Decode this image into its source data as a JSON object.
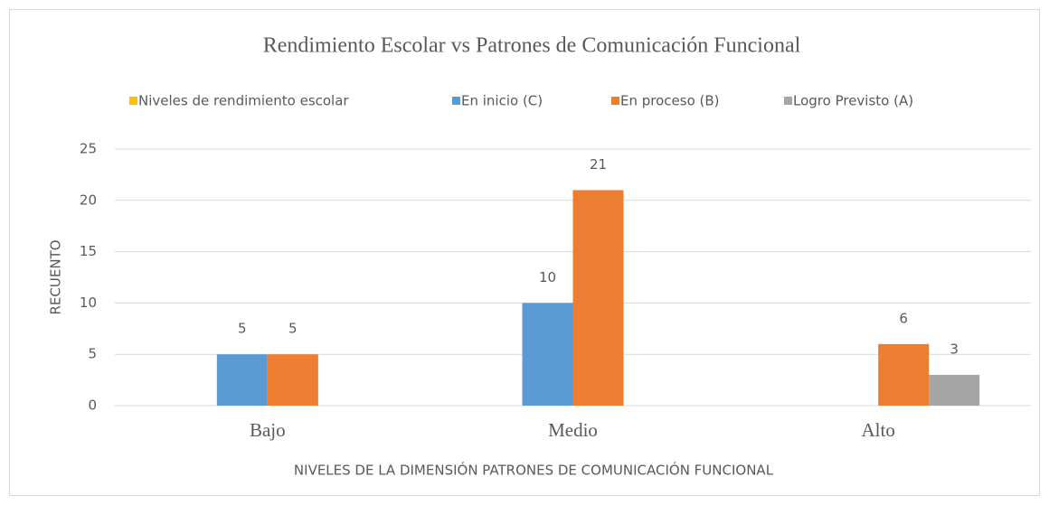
{
  "chart_data": {
    "type": "bar",
    "title": "Rendimiento  Escolar vs Patrones de Comunicación  Funcional",
    "categories": [
      "Bajo",
      "Medio",
      "Alto"
    ],
    "series": [
      {
        "name": "Niveles de rendimiento escolar",
        "color": "#ffc000",
        "values": [
          null,
          null,
          null
        ]
      },
      {
        "name": "En inicio (C)",
        "color": "#5b9bd5",
        "values": [
          5,
          10,
          null
        ]
      },
      {
        "name": "En proceso (B)",
        "color": "#ed7d31",
        "values": [
          5,
          21,
          6
        ]
      },
      {
        "name": "Logro Previsto (A)",
        "color": "#a5a5a5",
        "values": [
          null,
          null,
          3
        ]
      }
    ],
    "x_label": "NIVELES DE LA DIMENSIÓN PATRONES DE COMUNICACIÓN FUNCIONAL",
    "y_label": "RECUENTO",
    "ylim": [
      0,
      25
    ],
    "yticks": [
      0,
      5,
      10,
      15,
      20,
      25
    ],
    "grid": true,
    "legend": "top"
  }
}
